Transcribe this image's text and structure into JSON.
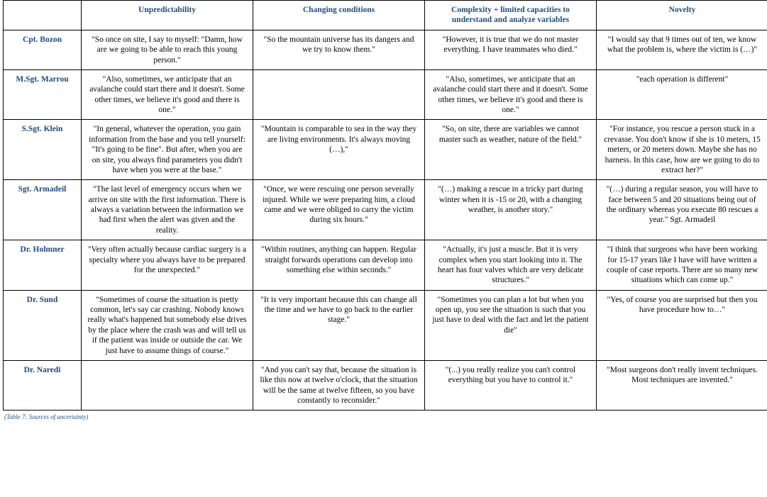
{
  "caption": "(Table 7: Sources of uncertainty)",
  "colors": {
    "heading": "#1f4e79",
    "border": "#000000",
    "background": "#ffffff",
    "body_text": "#000000"
  },
  "columns": [
    "Unpredictability",
    "Changing conditions",
    "Complexity + limited capacities to understand and analyze variables",
    "Novelty"
  ],
  "rows": [
    {
      "name": "Cpt.  Bozon",
      "cells": [
        "\"So once on site, I say to myself: \"Damn, how are we going to be able to reach this young person.\"",
        "\"So the mountain universe has its dangers and we try to know them.\"",
        "\"However, it is true that we do not master everything. I have teammates who died.\"",
        "\"I would say that 9 times out of ten, we know what the problem is, where the victim is (…)\""
      ]
    },
    {
      "name": "M.Sgt. Marrou",
      "cells": [
        "\"Also, sometimes, we anticipate that an avalanche could start there and it doesn't. Some other times, we believe it's good and there is one.\"",
        "",
        "\"Also, sometimes, we anticipate that an avalanche could start there and it doesn't. Some other times, we believe it's good and there is one.\"",
        "\"each operation is different\""
      ]
    },
    {
      "name": "S.Sgt.  Klein",
      "cells": [
        "\"In general, whatever the operation, you gain information from the base and you tell yourself: \"It's going to be fine\". But after, when you are on site, you always find parameters you didn't have when you were at the base.\"",
        "\"Mountain is comparable to sea in the way they are living environments. It's always moving (…),\"",
        "\"So, on site, there are variables we cannot master such as weather, nature of the field.\"",
        "\"For instance, you rescue a person stuck in a crevasse. You don't know if she is 10 meters, 15 meters, or 20 meters down. Maybe she has no harness. In this case, how are we going to do to extract her?\""
      ]
    },
    {
      "name": "Sgt. Armadeil",
      "cells": [
        "\"The last level of emergency occurs when we arrive on site with the first information. There is always a variation between the information we had first when the alert was given and the reality.",
        "\"Once, we were rescuing one person severally injured. While we were preparing him, a cloud came and we were obliged to carry the victim during six hours.\"",
        "\"(…) making a rescue in a tricky part during winter when it is -15 or 20, with a changing weather, is another story.\"",
        "\"(…) during a regular season, you will have to face between 5 and 20 situations being out of the ordinary whereas you execute 80 rescues a year.\" Sgt. Armadeil"
      ]
    },
    {
      "name": "Dr. Holmner",
      "cells": [
        "\"Very often actually because cardiac surgery is a specialty where you always have to be prepared for the unexpected.\"",
        "\"Within routines, anything can happen. Regular straight forwards operations can develop into something else within seconds.\"",
        "\"Actually, it's just a muscle. But it is very complex when you start looking into it. The heart has four valves which are very delicate structures.\"",
        "\"I think that surgeons who have been working for 15-17 years like I have will have written a couple of case reports. There are so many new situations which can come up.\""
      ]
    },
    {
      "name": "Dr. Sund",
      "cells": [
        "\"Sometimes of course the situation is pretty common, let's say car crashing. Nobody knows really what's happened but somebody else drives by the place where the crash was and will tell us if the patient was inside or outside the car. We just have to assume things of course.\"",
        "\"It is very important because this can change all the time and we have to go back to the earlier stage.\"",
        "\"Sometimes you can plan a lot but when you open up, you see the situation is such that you just have to deal with the fact and let the patient die\"",
        "\"Yes, of course you are surprised but then you have procedure how to…\""
      ]
    },
    {
      "name": "Dr. Naredi",
      "cells": [
        "",
        "\"And you can't say that, because the situation is like this now at twelve o'clock, that the situation will be the same at twelve fifteen, so you have constantly to reconsider.\"",
        "\"(...) you really realize you can't control everything but you have to control it.\"",
        "\"Most surgeons don't really invent techniques. Most techniques are invented.\""
      ]
    }
  ]
}
